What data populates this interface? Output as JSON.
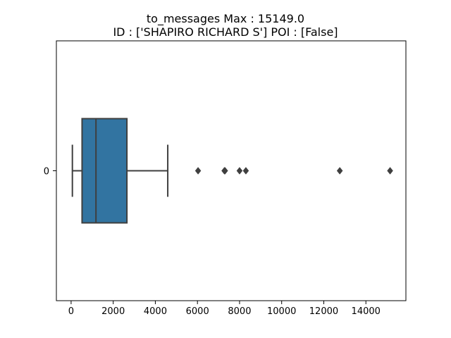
{
  "chart_data": {
    "type": "boxplot",
    "orientation": "horizontal",
    "title_lines": [
      "to_messages  Max : 15149.0",
      "ID : ['SHAPIRO RICHARD S']  POI : [False]"
    ],
    "xlabel": "",
    "ylabel": "",
    "category_labels": [
      "0"
    ],
    "x_ticks": [
      0,
      2000,
      4000,
      6000,
      8000,
      10000,
      12000,
      14000
    ],
    "xlim": [
      -700,
      15900
    ],
    "grid": false,
    "box": {
      "whisker_low": 60,
      "q1": 520,
      "median": 1180,
      "q3": 2650,
      "whisker_high": 4590,
      "color": "#3274a1",
      "edge_color": "#3f3f3f"
    },
    "outliers": [
      6030,
      7280,
      7310,
      8000,
      8300,
      12760,
      15149
    ]
  }
}
